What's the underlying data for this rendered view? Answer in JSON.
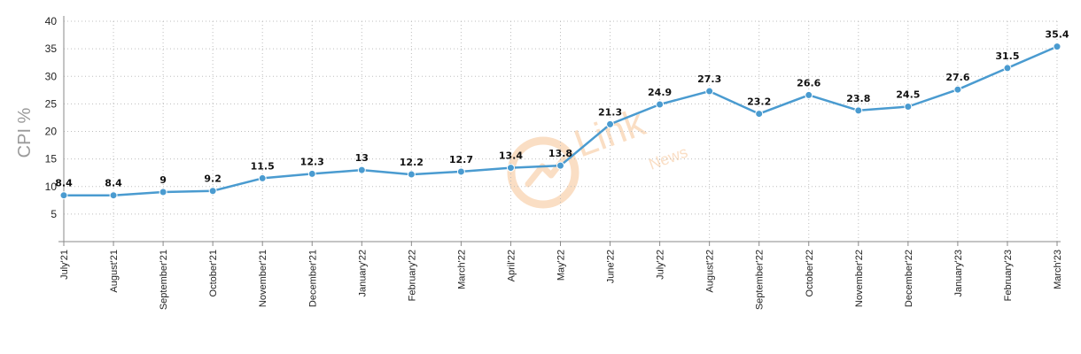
{
  "chart_data": {
    "type": "line",
    "ylabel": "CPI %",
    "xlabel": "",
    "ylim": [
      0,
      40
    ],
    "y_ticks": [
      5,
      10,
      15,
      20,
      25,
      30,
      35,
      40
    ],
    "categories": [
      "July'21",
      "August'21",
      "September'21",
      "October'21",
      "November'21",
      "December'21",
      "January'22",
      "February'22",
      "March'22",
      "April'22",
      "May'22",
      "June'22",
      "July'22",
      "August'22",
      "September'22",
      "October'22",
      "November'22",
      "December'22",
      "January'23",
      "February'23",
      "March'23"
    ],
    "series": [
      {
        "values": [
          8.4,
          8.4,
          9,
          9.2,
          11.5,
          12.3,
          13,
          12.2,
          12.7,
          13.4,
          13.8,
          21.3,
          24.9,
          27.3,
          23.2,
          26.6,
          23.8,
          24.5,
          27.6,
          31.5,
          35.4
        ],
        "labels": [
          "8.4",
          "8.4",
          "9",
          "9.2",
          "11.5",
          "12.3",
          "13",
          "12.2",
          "12.7",
          "13.4",
          "13.8",
          "21.3",
          "24.9",
          "27.3",
          "23.2",
          "26.6",
          "23.8",
          "24.5",
          "27.6",
          "31.5",
          "35.4"
        ]
      }
    ],
    "grid": true,
    "legend": "none",
    "line_color": "#4a9bd0",
    "grid_color": "#bdbdbd",
    "watermark": {
      "text_main": "Link",
      "text_sub": "News",
      "color": "#f2c48e"
    }
  }
}
